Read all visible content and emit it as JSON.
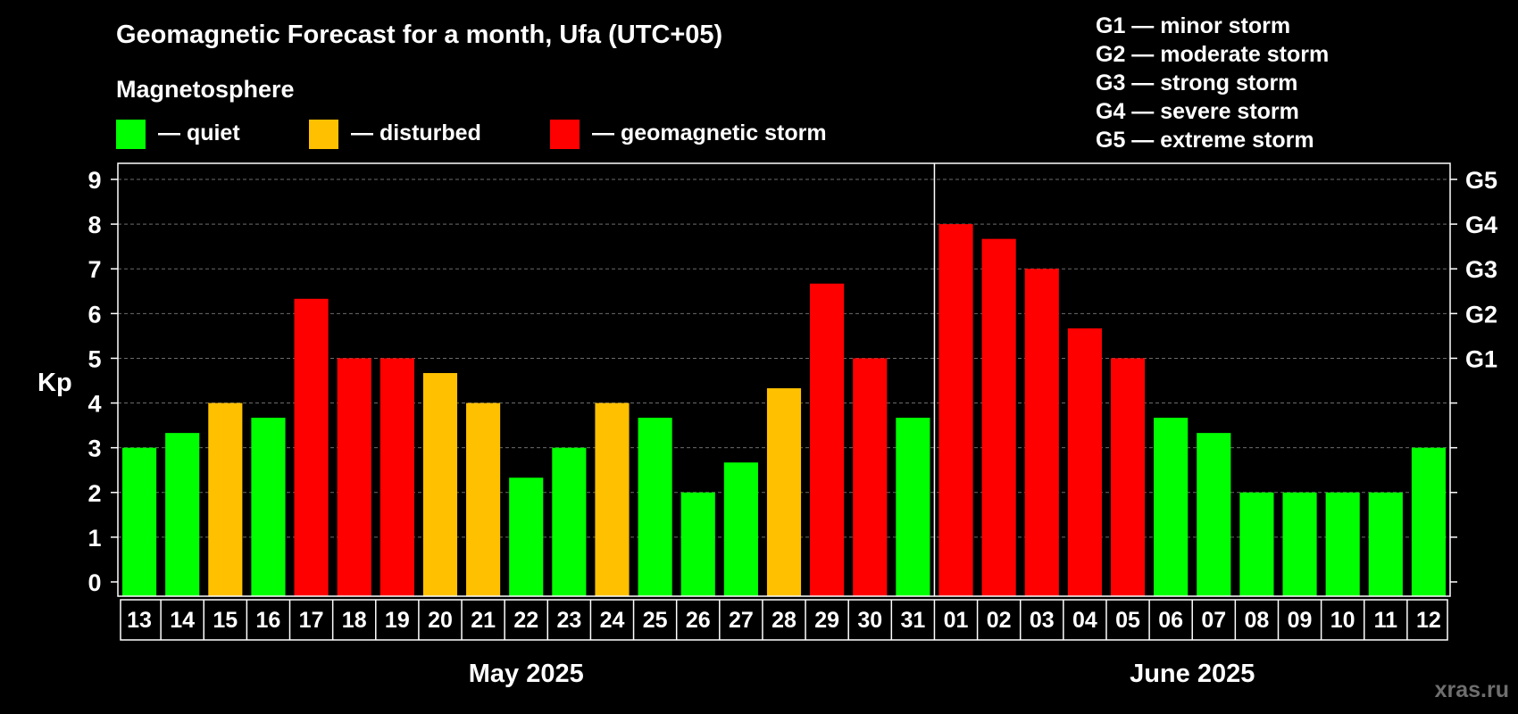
{
  "chart_data": {
    "type": "bar",
    "title": "Geomagnetic Forecast for a month, Ufa (UTC+05)",
    "ylabel": "Kp",
    "ylim": [
      0,
      9
    ],
    "yticks": [
      "0",
      "1",
      "2",
      "3",
      "4",
      "5",
      "6",
      "7",
      "8",
      "9"
    ],
    "right_axis_labels": [
      {
        "kp": 5,
        "label": "G1"
      },
      {
        "kp": 6,
        "label": "G2"
      },
      {
        "kp": 7,
        "label": "G3"
      },
      {
        "kp": 8,
        "label": "G4"
      },
      {
        "kp": 9,
        "label": "G5"
      }
    ],
    "legend": {
      "title": "Magnetosphere",
      "items": [
        {
          "label": "— quiet",
          "color": "#00ff00"
        },
        {
          "label": "— disturbed",
          "color": "#ffc000"
        },
        {
          "label": "— geomagnetic storm",
          "color": "#ff0000"
        }
      ]
    },
    "storm_scale": [
      "G1 — minor storm",
      "G2 — moderate storm",
      "G3 — strong storm",
      "G4 — severe storm",
      "G5 — extreme storm"
    ],
    "months": [
      {
        "label": "May 2025",
        "first_index": 0,
        "last_index": 18
      },
      {
        "label": "June 2025",
        "first_index": 19,
        "last_index": 30
      }
    ],
    "days": [
      {
        "day": "13",
        "kp": 3.0,
        "level": "quiet"
      },
      {
        "day": "14",
        "kp": 3.33,
        "level": "quiet"
      },
      {
        "day": "15",
        "kp": 4.0,
        "level": "disturbed"
      },
      {
        "day": "16",
        "kp": 3.67,
        "level": "quiet"
      },
      {
        "day": "17",
        "kp": 6.33,
        "level": "storm"
      },
      {
        "day": "18",
        "kp": 5.0,
        "level": "storm"
      },
      {
        "day": "19",
        "kp": 5.0,
        "level": "storm"
      },
      {
        "day": "20",
        "kp": 4.67,
        "level": "disturbed"
      },
      {
        "day": "21",
        "kp": 4.0,
        "level": "disturbed"
      },
      {
        "day": "22",
        "kp": 2.33,
        "level": "quiet"
      },
      {
        "day": "23",
        "kp": 3.0,
        "level": "quiet"
      },
      {
        "day": "24",
        "kp": 4.0,
        "level": "disturbed"
      },
      {
        "day": "25",
        "kp": 3.67,
        "level": "quiet"
      },
      {
        "day": "26",
        "kp": 2.0,
        "level": "quiet"
      },
      {
        "day": "27",
        "kp": 2.67,
        "level": "quiet"
      },
      {
        "day": "28",
        "kp": 4.33,
        "level": "disturbed"
      },
      {
        "day": "29",
        "kp": 6.67,
        "level": "storm"
      },
      {
        "day": "30",
        "kp": 5.0,
        "level": "storm"
      },
      {
        "day": "31",
        "kp": 3.67,
        "level": "quiet"
      },
      {
        "day": "01",
        "kp": 8.0,
        "level": "storm"
      },
      {
        "day": "02",
        "kp": 7.67,
        "level": "storm"
      },
      {
        "day": "03",
        "kp": 7.0,
        "level": "storm"
      },
      {
        "day": "04",
        "kp": 5.67,
        "level": "storm"
      },
      {
        "day": "05",
        "kp": 5.0,
        "level": "storm"
      },
      {
        "day": "06",
        "kp": 3.67,
        "level": "quiet"
      },
      {
        "day": "07",
        "kp": 3.33,
        "level": "quiet"
      },
      {
        "day": "08",
        "kp": 2.0,
        "level": "quiet"
      },
      {
        "day": "09",
        "kp": 2.0,
        "level": "quiet"
      },
      {
        "day": "10",
        "kp": 2.0,
        "level": "quiet"
      },
      {
        "day": "11",
        "kp": 2.0,
        "level": "quiet"
      },
      {
        "day": "12",
        "kp": 3.0,
        "level": "quiet"
      }
    ],
    "level_colors": {
      "quiet": "#00ff00",
      "disturbed": "#ffc000",
      "storm": "#ff0000"
    },
    "grid": true
  },
  "watermark": "xras.ru"
}
